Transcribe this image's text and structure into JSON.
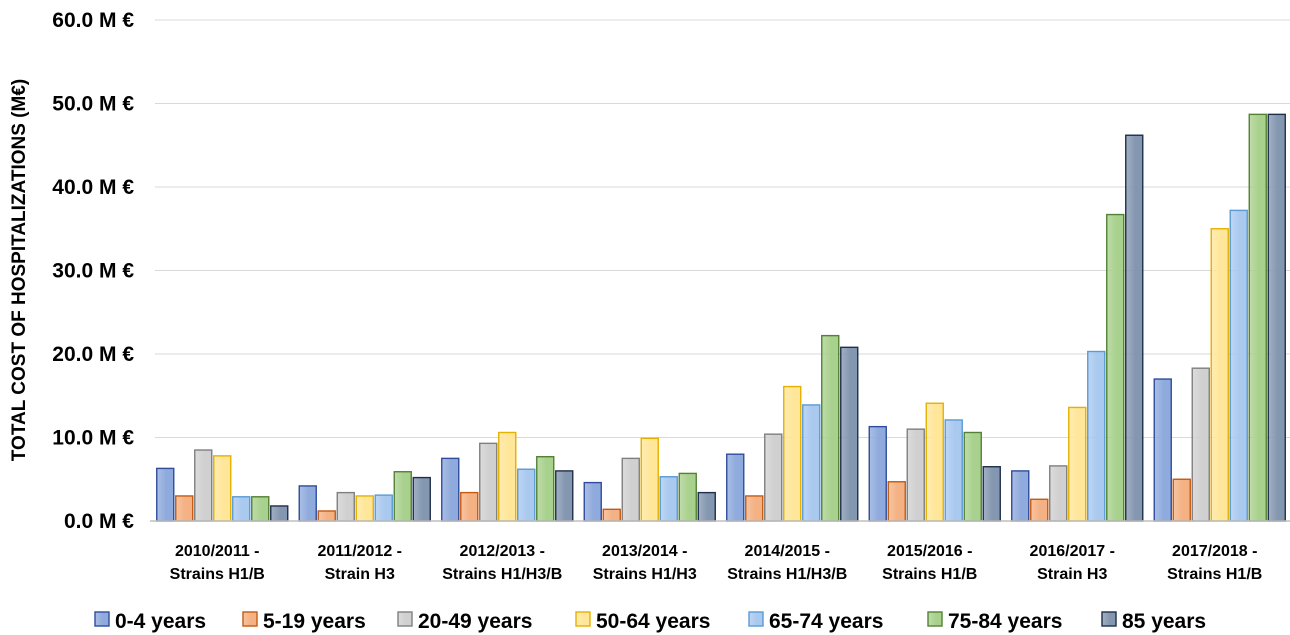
{
  "chart_data": {
    "type": "bar",
    "ylabel": "TOTAL COST OF HOSPITALIZATIONS (M€)",
    "xlabel": "",
    "ylim": [
      0,
      60
    ],
    "yticks": [
      0,
      10,
      20,
      30,
      40,
      50,
      60
    ],
    "ytick_labels": [
      "0.0 M €",
      "10.0 M €",
      "20.0 M €",
      "30.0 M €",
      "40.0 M €",
      "50.0 M €",
      "60.0 M €"
    ],
    "grid": true,
    "legend_position": "bottom",
    "categories": [
      [
        "2010/2011 -",
        "Strains H1/B"
      ],
      [
        "2011/2012 -",
        "Strain H3"
      ],
      [
        "2012/2013 -",
        "Strains H1/H3/B"
      ],
      [
        "2013/2014 -",
        "Strains H1/H3"
      ],
      [
        "2014/2015 -",
        "Strains H1/H3/B"
      ],
      [
        "2015/2016 -",
        "Strains H1/B"
      ],
      [
        "2016/2017 -",
        "Strain H3"
      ],
      [
        "2017/2018 -",
        "Strains H1/B"
      ]
    ],
    "series": [
      {
        "name": "0-4 years",
        "color": "#8faadc",
        "edge": "#2f4d9c",
        "values": [
          6.3,
          4.2,
          7.5,
          4.6,
          8.0,
          11.3,
          6.0,
          17.0
        ]
      },
      {
        "name": "5-19 years",
        "color": "#f4b183",
        "edge": "#c55a11",
        "values": [
          3.0,
          1.2,
          3.4,
          1.4,
          3.0,
          4.7,
          2.6,
          5.0
        ]
      },
      {
        "name": "20-49  years",
        "color": "#d0d0d0",
        "edge": "#7f7f7f",
        "values": [
          8.5,
          3.4,
          9.3,
          7.5,
          10.4,
          11.0,
          6.6,
          18.3
        ]
      },
      {
        "name": "50-64 years",
        "color": "#ffe699",
        "edge": "#e6b000",
        "values": [
          7.8,
          3.0,
          10.6,
          9.9,
          16.1,
          14.1,
          13.6,
          35.0
        ]
      },
      {
        "name": "65-74 years",
        "color": "#a9c9ef",
        "edge": "#5b9bd5",
        "values": [
          2.9,
          3.1,
          6.2,
          5.3,
          13.9,
          12.1,
          20.3,
          37.2
        ]
      },
      {
        "name": "75-84 years",
        "color": "#a9d18e",
        "edge": "#548235",
        "values": [
          2.9,
          5.9,
          7.7,
          5.7,
          22.2,
          10.6,
          36.7,
          48.7
        ]
      },
      {
        "name": "85 years",
        "color": "#8497b0",
        "edge": "#1f2e4a",
        "values": [
          1.8,
          5.2,
          6.0,
          3.4,
          20.8,
          6.5,
          46.2,
          48.7
        ]
      }
    ]
  }
}
